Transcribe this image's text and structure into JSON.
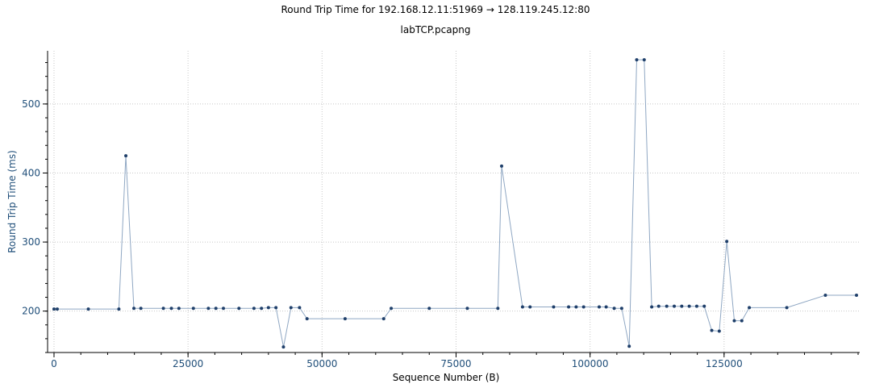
{
  "chart_data": {
    "type": "line",
    "title": "Round Trip Time for 192.168.12.11:51969 → 128.119.245.12:80",
    "subtitle": "labTCP.pcapng",
    "xlabel": "Sequence Number (B)",
    "ylabel": "Round Trip Time (ms)",
    "xlim": [
      -1200,
      150300
    ],
    "ylim": [
      140,
      577
    ],
    "xticks": [
      0,
      25000,
      50000,
      75000,
      100000,
      125000
    ],
    "xtick_labels": [
      "0",
      "25000",
      "50000",
      "75000",
      "100000",
      "125000"
    ],
    "xminor_step": 5000,
    "yticks": [
      200,
      300,
      400,
      500
    ],
    "ytick_labels": [
      "200",
      "300",
      "400",
      "500"
    ],
    "yminor_step": 20,
    "grid": true,
    "series": [
      {
        "color": "#8fa7c3",
        "marker_color": "#1f3f6a",
        "x": [
          0,
          600,
          6400,
          12100,
          13400,
          14900,
          16200,
          20400,
          21900,
          23300,
          26000,
          28800,
          30200,
          31600,
          34500,
          37300,
          38700,
          40000,
          41400,
          42800,
          44200,
          45800,
          47200,
          54300,
          61500,
          62900,
          70000,
          77100,
          82800,
          83500,
          87400,
          88800,
          93200,
          96000,
          97400,
          98800,
          101700,
          103000,
          104500,
          105900,
          107300,
          108700,
          110100,
          111500,
          112800,
          114300,
          115700,
          117100,
          118500,
          119900,
          121300,
          122700,
          124100,
          125500,
          126900,
          128300,
          129700,
          136700,
          143900,
          149700
        ],
        "y": [
          203,
          203,
          203,
          203,
          425,
          204,
          204,
          204,
          204,
          204,
          204,
          204,
          204,
          204,
          204,
          204,
          204,
          205,
          205,
          148,
          205,
          205,
          189,
          189,
          189,
          204,
          204,
          204,
          204,
          410,
          206,
          206,
          206,
          206,
          206,
          206,
          206,
          206,
          204,
          204,
          149,
          564,
          564,
          206,
          207,
          207,
          207,
          207,
          207,
          207,
          207,
          172,
          171,
          301,
          186,
          186,
          205,
          205,
          223,
          223
        ]
      }
    ]
  }
}
